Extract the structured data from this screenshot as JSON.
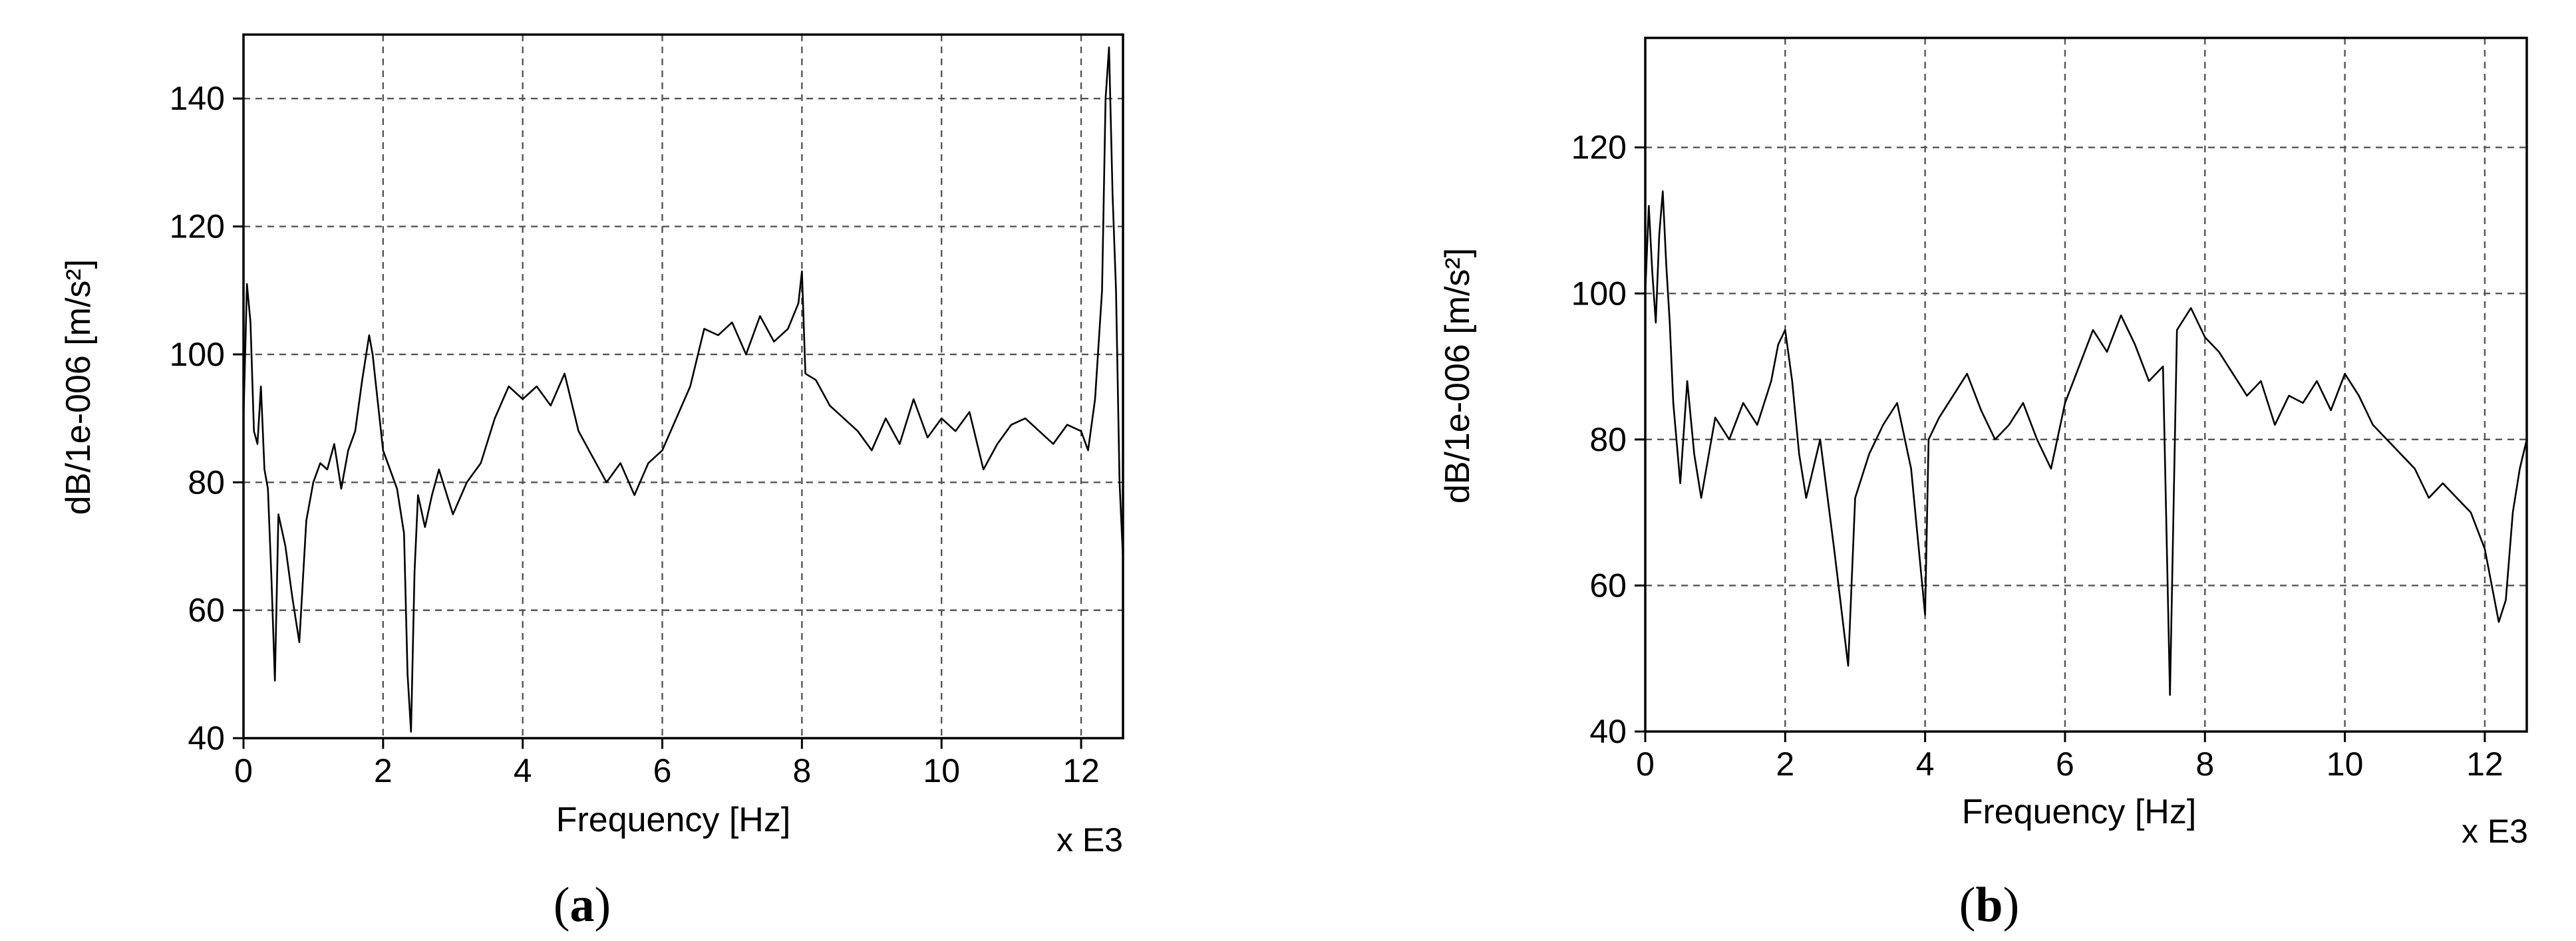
{
  "chart_data": [
    {
      "type": "line",
      "panel_label": "a",
      "xlabel": "Frequency [Hz]",
      "ylabel": "dB/1e-006 [m/s²]",
      "x_multiplier": "x E3",
      "xlim": [
        0,
        12.6
      ],
      "ylim": [
        40,
        150
      ],
      "x_ticks": [
        0,
        2,
        4,
        6,
        8,
        10,
        12
      ],
      "y_ticks": [
        40,
        60,
        80,
        100,
        120,
        140
      ],
      "grid": true,
      "series": [
        {
          "x": [
            0,
            0.05,
            0.1,
            0.15,
            0.2,
            0.25,
            0.3,
            0.35,
            0.4,
            0.45,
            0.5,
            0.6,
            0.7,
            0.8,
            0.9,
            1.0,
            1.1,
            1.2,
            1.3,
            1.4,
            1.5,
            1.6,
            1.7,
            1.8,
            1.85,
            1.9,
            2.0,
            2.1,
            2.2,
            2.3,
            2.35,
            2.4,
            2.45,
            2.5,
            2.6,
            2.7,
            2.8,
            3.0,
            3.2,
            3.4,
            3.6,
            3.8,
            4.0,
            4.2,
            4.4,
            4.6,
            4.8,
            5.0,
            5.2,
            5.4,
            5.6,
            5.8,
            6.0,
            6.2,
            6.4,
            6.6,
            6.8,
            7.0,
            7.2,
            7.4,
            7.6,
            7.8,
            7.95,
            8.0,
            8.05,
            8.2,
            8.4,
            8.6,
            8.8,
            9.0,
            9.2,
            9.4,
            9.6,
            9.8,
            10.0,
            10.2,
            10.4,
            10.6,
            10.8,
            11.0,
            11.2,
            11.4,
            11.6,
            11.8,
            12.0,
            12.1,
            12.2,
            12.3,
            12.35,
            12.4,
            12.45,
            12.5,
            12.55,
            12.6
          ],
          "y": [
            90,
            111,
            105,
            88,
            86,
            95,
            82,
            79,
            65,
            49,
            75,
            70,
            62,
            55,
            74,
            80,
            83,
            82,
            86,
            79,
            85,
            88,
            96,
            103,
            100,
            95,
            85,
            82,
            79,
            72,
            50,
            41,
            66,
            78,
            73,
            78,
            82,
            75,
            80,
            83,
            90,
            95,
            93,
            95,
            92,
            97,
            88,
            84,
            80,
            83,
            78,
            83,
            85,
            90,
            95,
            104,
            103,
            105,
            100,
            106,
            102,
            104,
            108,
            113,
            97,
            96,
            92,
            90,
            88,
            85,
            90,
            86,
            93,
            87,
            90,
            88,
            91,
            82,
            86,
            89,
            90,
            88,
            86,
            89,
            88,
            85,
            93,
            110,
            140,
            148,
            125,
            110,
            80,
            68
          ]
        }
      ]
    },
    {
      "type": "line",
      "panel_label": "b",
      "xlabel": "Frequency [Hz]",
      "ylabel": "dB/1e-006 [m/s²]",
      "x_multiplier": "x E3",
      "xlim": [
        0,
        12.6
      ],
      "ylim": [
        40,
        135
      ],
      "x_ticks": [
        0,
        2,
        4,
        6,
        8,
        10,
        12
      ],
      "y_ticks": [
        40,
        60,
        80,
        100,
        120
      ],
      "grid": true,
      "series": [
        {
          "x": [
            0,
            0.05,
            0.1,
            0.15,
            0.2,
            0.25,
            0.3,
            0.35,
            0.4,
            0.5,
            0.6,
            0.7,
            0.8,
            1.0,
            1.2,
            1.4,
            1.6,
            1.8,
            1.9,
            2.0,
            2.1,
            2.2,
            2.3,
            2.5,
            2.7,
            2.9,
            3.0,
            3.2,
            3.4,
            3.6,
            3.8,
            4.0,
            4.05,
            4.2,
            4.4,
            4.6,
            4.8,
            5.0,
            5.2,
            5.4,
            5.6,
            5.8,
            6.0,
            6.2,
            6.4,
            6.6,
            6.8,
            7.0,
            7.2,
            7.4,
            7.5,
            7.6,
            7.8,
            8.0,
            8.2,
            8.4,
            8.6,
            8.8,
            9.0,
            9.2,
            9.4,
            9.6,
            9.8,
            10.0,
            10.2,
            10.4,
            10.6,
            10.8,
            11.0,
            11.2,
            11.4,
            11.6,
            11.8,
            12.0,
            12.1,
            12.2,
            12.3,
            12.4,
            12.5,
            12.6
          ],
          "y": [
            100,
            112,
            103,
            96,
            108,
            114,
            104,
            96,
            85,
            74,
            88,
            78,
            72,
            83,
            80,
            85,
            82,
            88,
            93,
            95,
            88,
            78,
            72,
            80,
            65,
            49,
            72,
            78,
            82,
            85,
            76,
            56,
            80,
            83,
            86,
            89,
            84,
            80,
            82,
            85,
            80,
            76,
            85,
            90,
            95,
            92,
            97,
            93,
            88,
            90,
            45,
            95,
            98,
            94,
            92,
            89,
            86,
            88,
            82,
            86,
            85,
            88,
            84,
            89,
            86,
            82,
            80,
            78,
            76,
            72,
            74,
            72,
            70,
            65,
            60,
            55,
            58,
            70,
            76,
            80
          ]
        }
      ]
    }
  ]
}
